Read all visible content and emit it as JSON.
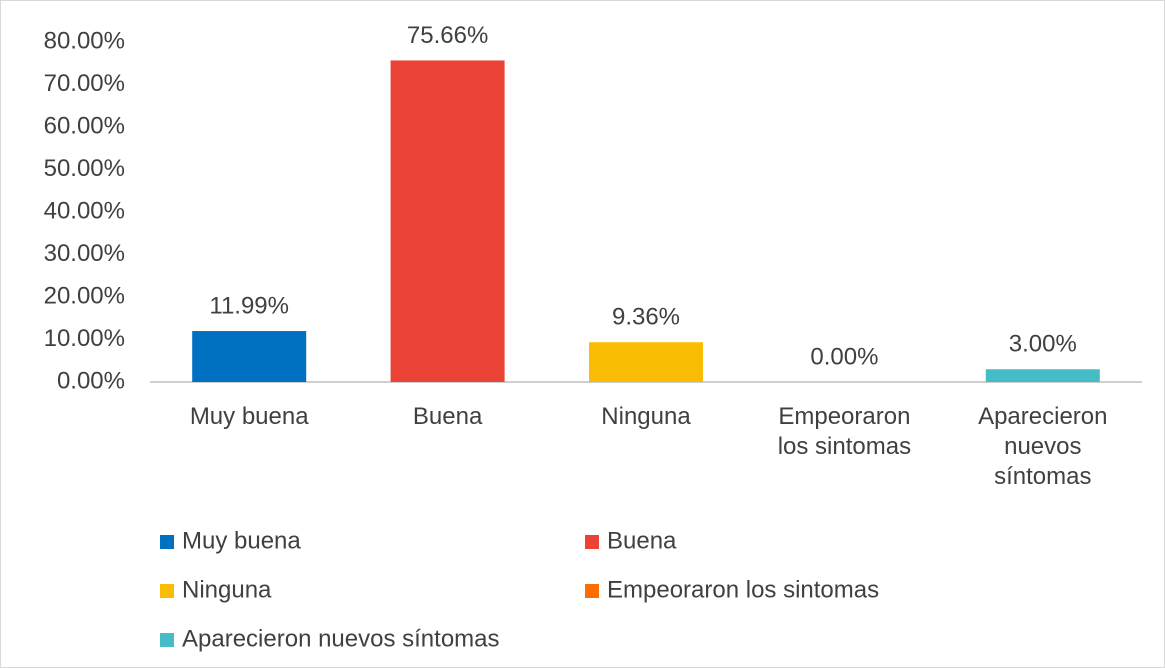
{
  "chart_data": {
    "type": "bar",
    "categories": [
      "Muy buena",
      "Buena",
      "Ninguna",
      "Empeoraron los sintomas",
      "Aparecieron nuevos síntomas"
    ],
    "values": [
      11.99,
      75.66,
      9.36,
      0.0,
      3.0
    ],
    "value_labels": [
      "11.99%",
      "75.66%",
      "9.36%",
      "0.00%",
      "3.00%"
    ],
    "colors": [
      "#0070c0",
      "#ea4335",
      "#fbbc04",
      "#ff6d01",
      "#46bdc6"
    ],
    "ylim": [
      0,
      80
    ],
    "yticks": [
      {
        "value": 0,
        "label": "0.00%"
      },
      {
        "value": 10,
        "label": "10.00%"
      },
      {
        "value": 20,
        "label": "20.00%"
      },
      {
        "value": 30,
        "label": "30.00%"
      },
      {
        "value": 40,
        "label": "40.00%"
      },
      {
        "value": 50,
        "label": "50.00%"
      },
      {
        "value": 60,
        "label": "60.00%"
      },
      {
        "value": 70,
        "label": "70.00%"
      },
      {
        "value": 80,
        "label": "80.00%"
      }
    ],
    "grid": false,
    "legend": "bottom"
  }
}
